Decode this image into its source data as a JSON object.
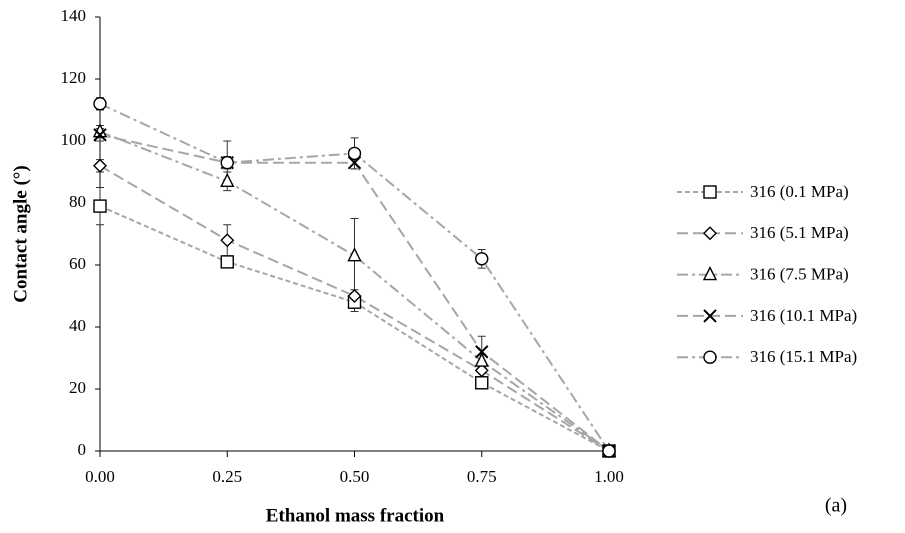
{
  "chart_data": {
    "type": "line",
    "x_label": "Ethanol mass fraction",
    "y_label": "Contact angle (°)",
    "annotation": "(a)",
    "x": [
      0,
      0.25,
      0.5,
      0.75,
      1
    ],
    "xlim": [
      0,
      1
    ],
    "xticks": [
      {
        "value": 0,
        "label": "0.00"
      },
      {
        "value": 0.25,
        "label": "0.25"
      },
      {
        "value": 0.5,
        "label": "0.50"
      },
      {
        "value": 0.75,
        "label": "0.75"
      },
      {
        "value": 1,
        "label": "1.00"
      }
    ],
    "ylim": [
      0,
      140
    ],
    "yticks": [
      0,
      20,
      40,
      60,
      80,
      100,
      120,
      140
    ],
    "grid": false,
    "legend": "right",
    "series": [
      {
        "name": "316 (0.1 MPa)",
        "color": "#a6a6a6",
        "marker": "square",
        "dash": "short",
        "values": [
          79,
          61,
          48,
          22,
          0
        ],
        "errors": [
          6,
          1,
          3,
          2,
          0
        ]
      },
      {
        "name": "316 (5.1 MPa)",
        "color": "#a6a6a6",
        "marker": "diamond",
        "dash": "long",
        "values": [
          92,
          68,
          50,
          26,
          0
        ],
        "errors": [
          2,
          5,
          2,
          2,
          0
        ]
      },
      {
        "name": "316 (7.5 MPa)",
        "color": "#a6a6a6",
        "marker": "triangle",
        "dash": "dashdot",
        "values": [
          103,
          87,
          63,
          29,
          0
        ],
        "errors": [
          2,
          3,
          12,
          2,
          0
        ]
      },
      {
        "name": "316 (10.1 MPa)",
        "color": "#a6a6a6",
        "marker": "cross",
        "dash": "long",
        "values": [
          102,
          93,
          93,
          32,
          0
        ],
        "errors": [
          2,
          2,
          2,
          5,
          0
        ]
      },
      {
        "name": "316 (15.1 MPa)",
        "color": "#a6a6a6",
        "marker": "circle",
        "dash": "dashdot",
        "values": [
          112,
          93,
          96,
          62,
          0
        ],
        "errors": [
          2,
          7,
          5,
          3,
          0
        ]
      }
    ]
  }
}
